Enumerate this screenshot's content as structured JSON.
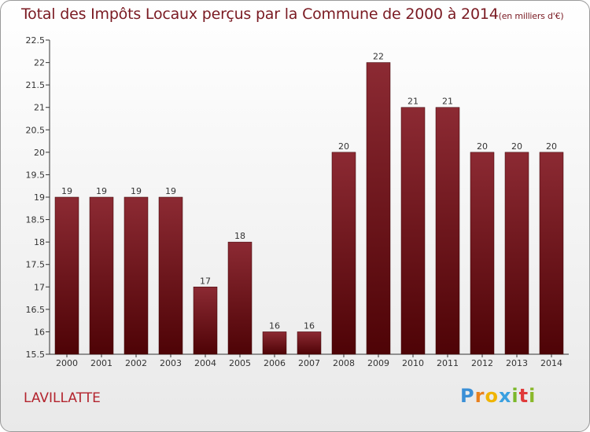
{
  "title": "Total des Impôts Locaux perçus par la Commune de 2000 à 2014",
  "unit_note": "(en milliers d'€)",
  "town_name": "LAVILLATTE",
  "logo": {
    "letters": [
      "P",
      "r",
      "o",
      "x",
      "i",
      "t",
      "i"
    ],
    "colors": [
      "#3a8fd6",
      "#e8801e",
      "#f0b400",
      "#3aa0e0",
      "#7bb82a",
      "#e03a3a",
      "#8ab82a"
    ]
  },
  "colors": {
    "bar_top": "#8c2a33",
    "bar_bottom": "#4e0306",
    "axis": "#333333",
    "grid": "#d8d8d8"
  },
  "chart_data": {
    "type": "bar",
    "title": "Total des Impôts Locaux perçus par la Commune de 2000 à 2014",
    "xlabel": "",
    "ylabel": "",
    "categories": [
      "2000",
      "2001",
      "2002",
      "2003",
      "2004",
      "2005",
      "2006",
      "2007",
      "2008",
      "2009",
      "2010",
      "2011",
      "2012",
      "2013",
      "2014"
    ],
    "values": [
      19,
      19,
      19,
      19,
      17,
      18,
      16,
      16,
      20,
      22,
      21,
      21,
      20,
      20,
      20
    ],
    "data_labels": [
      "19",
      "19",
      "19",
      "19",
      "17",
      "18",
      "16",
      "16",
      "20",
      "22",
      "21",
      "21",
      "20",
      "20",
      "20"
    ],
    "ylim": [
      15.5,
      22.5
    ],
    "yticks": [
      15.5,
      16,
      16.5,
      17,
      17.5,
      18,
      18.5,
      19,
      19.5,
      20,
      20.5,
      21,
      21.5,
      22,
      22.5
    ],
    "ytick_labels": [
      "15.5",
      "16",
      "16.5",
      "17",
      "17.5",
      "18",
      "18.5",
      "19",
      "19.5",
      "20",
      "20.5",
      "21",
      "21.5",
      "22",
      "22.5"
    ],
    "grid": false
  }
}
